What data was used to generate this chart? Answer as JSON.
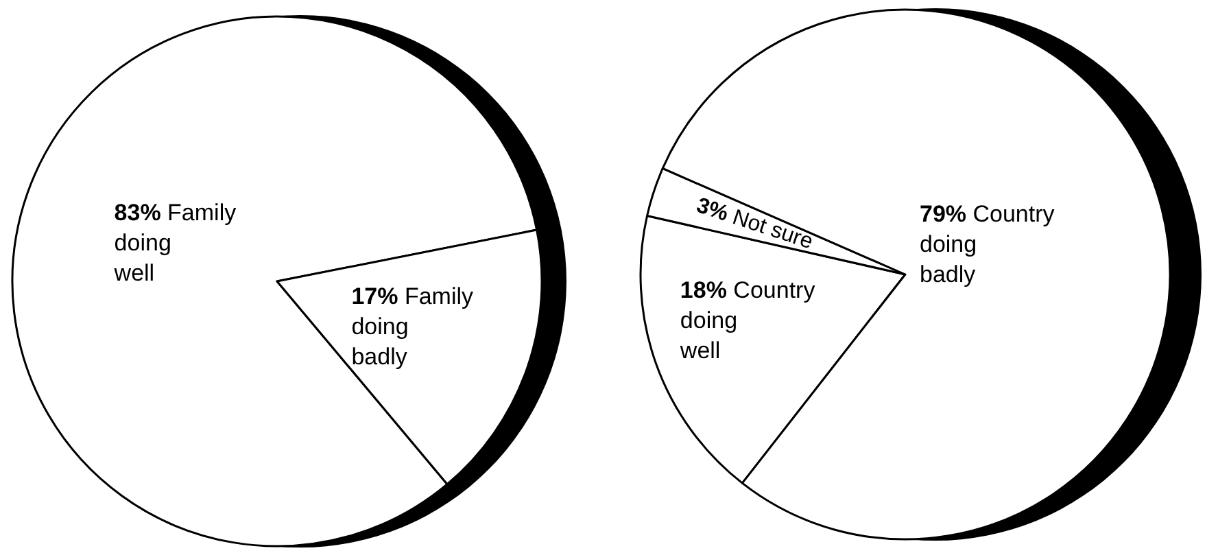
{
  "chart_data": [
    {
      "type": "pie",
      "categories": [
        "Family doing well",
        "Family doing badly"
      ],
      "values": [
        83,
        17
      ],
      "value_labels": [
        "83%",
        "17%"
      ],
      "colors": [
        "#ffffff",
        "#ffffff"
      ]
    },
    {
      "type": "pie",
      "categories": [
        "Country doing well",
        "Not sure",
        "Country doing badly"
      ],
      "values": [
        18,
        3,
        79
      ],
      "value_labels": [
        "18%",
        "3%",
        "79%"
      ],
      "colors": [
        "#ffffff",
        "#ffffff",
        "#ffffff"
      ]
    }
  ]
}
